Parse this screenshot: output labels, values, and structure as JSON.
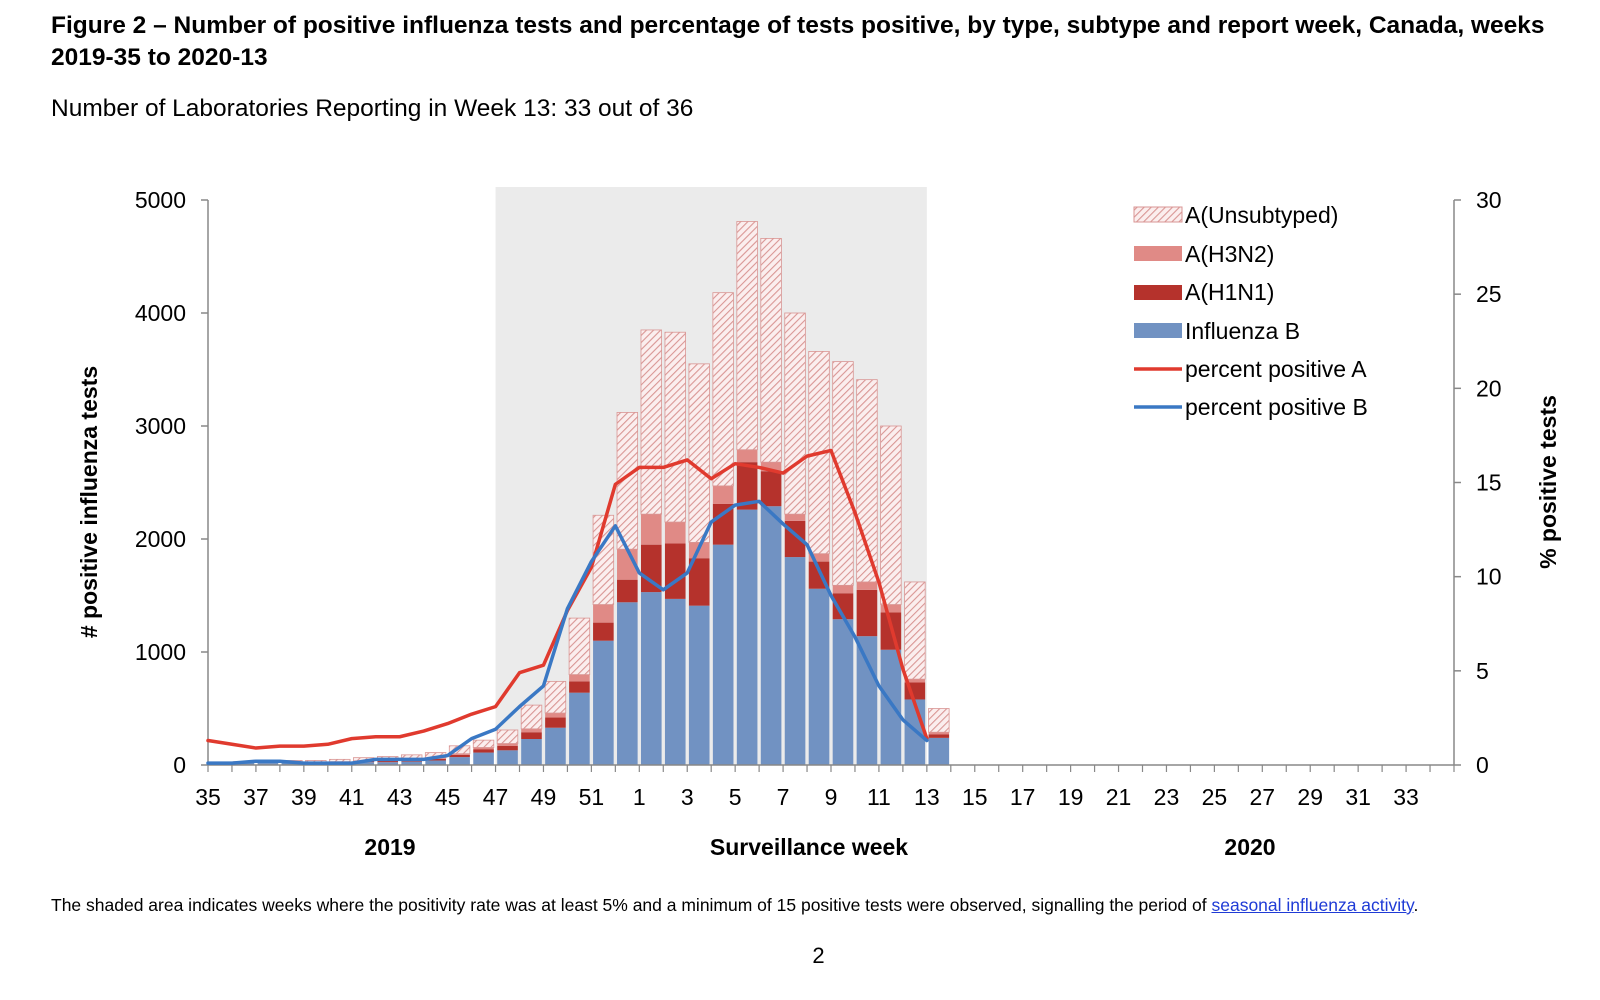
{
  "title": "Figure 2 – Number of positive influenza tests and percentage of tests positive, by type, subtype and report week, Canada, weeks 2019-35 to 2020-13",
  "subtitle": "Number of Laboratories Reporting in Week 13: 33 out of 36",
  "footnote": {
    "text": "The shaded area indicates weeks where the positivity rate was at least 5% and a minimum of 15 positive tests were observed, signalling the period of ",
    "link_text": "seasonal influenza activity",
    "end": "."
  },
  "page_number": "2",
  "colors": {
    "a_unsubtyped": "#d99694",
    "a_h3n2": "#e08a86",
    "a_h1n1": "#b5322c",
    "influenza_b": "#7192c2",
    "pct_a": "#e03a2e",
    "pct_b": "#3a78c4",
    "shade": "#ebebeb"
  },
  "chart_data": {
    "type": "bar",
    "stacked": true,
    "xlabel": "Surveillance week",
    "ylabel": "# positive influenza tests",
    "y2label": "% positive tests",
    "ylim": [
      0,
      5000
    ],
    "y2lim": [
      0,
      30
    ],
    "yticks": [
      0,
      1000,
      2000,
      3000,
      4000,
      5000
    ],
    "y2ticks": [
      0,
      5,
      10,
      15,
      20,
      25,
      30
    ],
    "year_labels": [
      "2019",
      "2020"
    ],
    "shaded_weeks": [
      "47",
      "13"
    ],
    "legend_position": "top-right",
    "weeks": [
      "35",
      "36",
      "37",
      "38",
      "39",
      "40",
      "41",
      "42",
      "43",
      "44",
      "45",
      "46",
      "47",
      "48",
      "49",
      "50",
      "51",
      "52",
      "1",
      "2",
      "3",
      "4",
      "5",
      "6",
      "7",
      "8",
      "9",
      "10",
      "11",
      "12",
      "13",
      "14",
      "15",
      "16",
      "17",
      "18",
      "19",
      "20",
      "21",
      "22",
      "23",
      "24",
      "25",
      "26",
      "27",
      "28",
      "29",
      "30",
      "31",
      "32",
      "33",
      "34"
    ],
    "tick_labels": [
      "35",
      "37",
      "39",
      "41",
      "43",
      "45",
      "47",
      "49",
      "51",
      "1",
      "3",
      "5",
      "7",
      "9",
      "11",
      "13",
      "15",
      "17",
      "19",
      "21",
      "23",
      "25",
      "27",
      "29",
      "31",
      "33"
    ],
    "series": [
      {
        "name": "Influenza B",
        "kind": "bar",
        "values": [
          15,
          20,
          25,
          20,
          15,
          20,
          25,
          25,
          30,
          40,
          70,
          110,
          130,
          230,
          330,
          640,
          1100,
          1440,
          1530,
          1470,
          1410,
          1950,
          2260,
          2290,
          1840,
          1560,
          1290,
          1140,
          1020,
          580,
          240,
          0,
          0,
          0,
          0,
          0,
          0,
          0,
          0,
          0,
          0,
          0,
          0,
          0,
          0,
          0,
          0,
          0,
          0,
          0,
          0,
          0
        ]
      },
      {
        "name": "A(H1N1)",
        "kind": "bar",
        "values": [
          3,
          3,
          4,
          4,
          5,
          6,
          8,
          10,
          12,
          15,
          20,
          30,
          40,
          60,
          90,
          100,
          160,
          200,
          420,
          490,
          420,
          360,
          420,
          310,
          320,
          240,
          230,
          410,
          330,
          150,
          30,
          0,
          0,
          0,
          0,
          0,
          0,
          0,
          0,
          0,
          0,
          0,
          0,
          0,
          0,
          0,
          0,
          0,
          0,
          0,
          0,
          0
        ]
      },
      {
        "name": "A(H3N2)",
        "kind": "bar",
        "values": [
          1,
          1,
          1,
          2,
          2,
          3,
          4,
          5,
          6,
          8,
          10,
          15,
          20,
          30,
          40,
          60,
          160,
          270,
          270,
          190,
          140,
          160,
          110,
          80,
          60,
          70,
          70,
          70,
          70,
          30,
          20,
          0,
          0,
          0,
          0,
          0,
          0,
          0,
          0,
          0,
          0,
          0,
          0,
          0,
          0,
          0,
          0,
          0,
          0,
          0,
          0,
          0
        ]
      },
      {
        "name": "A(Unsubtyped)",
        "kind": "bar",
        "values": [
          6,
          6,
          10,
          14,
          18,
          21,
          28,
          35,
          42,
          47,
          70,
          65,
          120,
          210,
          280,
          500,
          790,
          1210,
          1630,
          1680,
          1580,
          1710,
          2020,
          1980,
          1780,
          1790,
          1980,
          1790,
          1580,
          860,
          210,
          0,
          0,
          0,
          0,
          0,
          0,
          0,
          0,
          0,
          0,
          0,
          0,
          0,
          0,
          0,
          0,
          0,
          0,
          0,
          0,
          0
        ]
      },
      {
        "name": "percent positive A",
        "kind": "line",
        "values": [
          1.3,
          1.1,
          0.9,
          1.0,
          1.0,
          1.1,
          1.4,
          1.5,
          1.5,
          1.8,
          2.2,
          2.7,
          3.1,
          4.9,
          5.3,
          8.2,
          10.5,
          14.9,
          15.8,
          15.8,
          16.2,
          15.2,
          16.0,
          15.8,
          15.5,
          16.4,
          16.7,
          13.4,
          9.7,
          5.1,
          1.4
        ]
      },
      {
        "name": "percent positive B",
        "kind": "line",
        "values": [
          0.1,
          0.1,
          0.2,
          0.2,
          0.1,
          0.1,
          0.1,
          0.3,
          0.3,
          0.3,
          0.5,
          1.4,
          1.9,
          3.1,
          4.2,
          8.3,
          10.8,
          12.7,
          10.2,
          9.3,
          10.2,
          12.9,
          13.8,
          14.0,
          12.8,
          11.7,
          9.0,
          6.8,
          4.2,
          2.4,
          1.3
        ]
      }
    ]
  }
}
